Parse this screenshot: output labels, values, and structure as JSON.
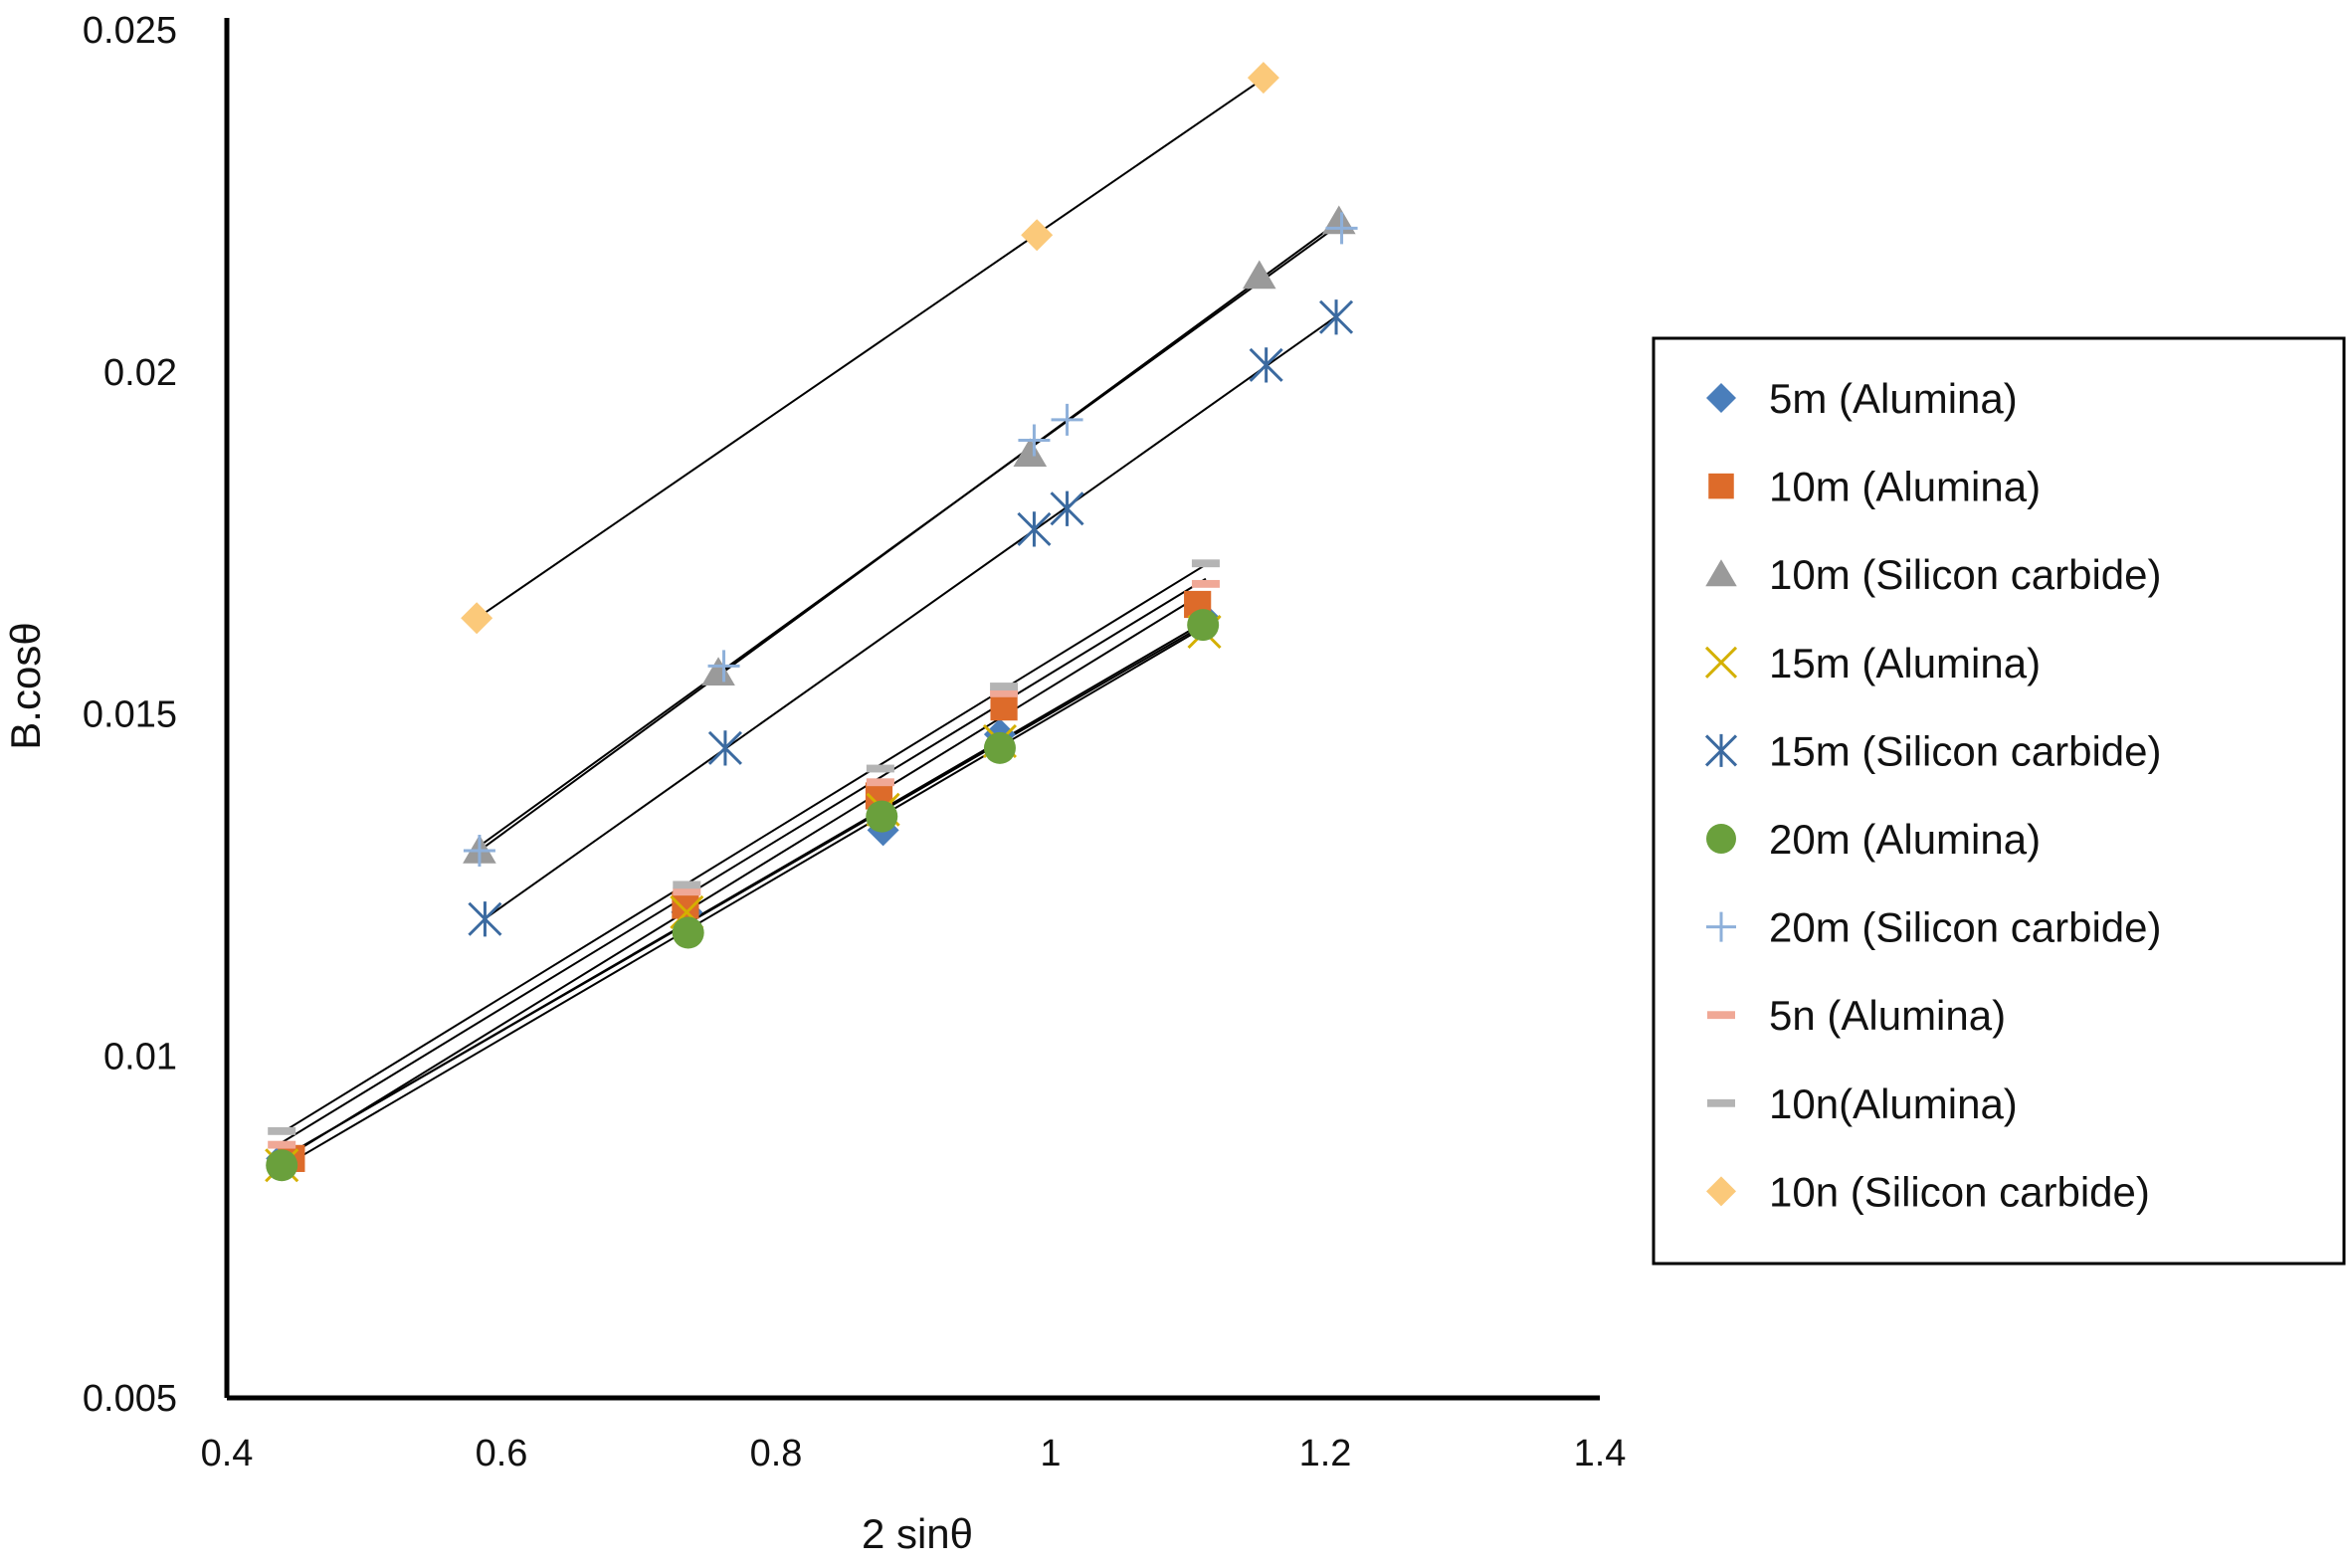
{
  "chart_data": {
    "type": "scatter",
    "title": "",
    "xlabel": "2 sinθ",
    "ylabel": "B.cosθ",
    "xlim": [
      0.4,
      1.4
    ],
    "ylim": [
      0.005,
      0.025
    ],
    "xticks": [
      0.4,
      0.6,
      0.8,
      1,
      1.2,
      1.4
    ],
    "xtick_labels": [
      "0.4",
      "0.6",
      "0.8",
      "1",
      "1.2",
      "1.4"
    ],
    "yticks": [
      0.005,
      0.01,
      0.015,
      0.02,
      0.025
    ],
    "ytick_labels": [
      "0.005",
      "0.01",
      "0.015",
      "0.02",
      "0.025"
    ],
    "grid": false,
    "legend_position": "right",
    "trendlines": "linear",
    "series": [
      {
        "name": "5m (Alumina)",
        "marker": "diamond",
        "color": "#4a7ebb",
        "x": [
          0.44,
          0.735,
          0.878,
          0.963,
          1.112
        ],
        "y": [
          0.0085,
          0.0121,
          0.0133,
          0.0147,
          0.0164
        ]
      },
      {
        "name": "10m (Alumina)",
        "marker": "square",
        "color": "#dd6b2a",
        "x": [
          0.447,
          0.734,
          0.875,
          0.966,
          1.107
        ],
        "y": [
          0.0085,
          0.0122,
          0.0138,
          0.0151,
          0.0166
        ]
      },
      {
        "name": "10m (Silicon carbide)",
        "marker": "triangle",
        "color": "#9a9a9a",
        "x": [
          0.584,
          0.758,
          0.985,
          1.152,
          1.21
        ],
        "y": [
          0.013,
          0.0156,
          0.0188,
          0.0214,
          0.0222
        ]
      },
      {
        "name": "15m (Alumina)",
        "marker": "x",
        "color": "#d4b000",
        "x": [
          0.44,
          0.735,
          0.878,
          0.963,
          1.112
        ],
        "y": [
          0.0084,
          0.0121,
          0.0136,
          0.0146,
          0.0162
        ]
      },
      {
        "name": "15m (Silicon carbide)",
        "marker": "star",
        "color": "#3b6aa0",
        "x": [
          0.588,
          0.763,
          0.988,
          1.012,
          1.157,
          1.208
        ],
        "y": [
          0.012,
          0.0145,
          0.0177,
          0.018,
          0.0201,
          0.0208
        ]
      },
      {
        "name": "20m (Alumina)",
        "marker": "circle",
        "color": "#6aa03c",
        "x": [
          0.44,
          0.736,
          0.877,
          0.963,
          1.111
        ],
        "y": [
          0.0084,
          0.0118,
          0.0135,
          0.0145,
          0.0163
        ]
      },
      {
        "name": "20m (Silicon carbide)",
        "marker": "plus",
        "color": "#8eb0da",
        "x": [
          0.584,
          0.762,
          0.988,
          1.012,
          1.212
        ],
        "y": [
          0.013,
          0.0157,
          0.019,
          0.0193,
          0.0221
        ]
      },
      {
        "name": "5n (Alumina)",
        "marker": "dash",
        "color": "#f0a896",
        "x": [
          0.44,
          0.735,
          0.876,
          0.966,
          1.113
        ],
        "y": [
          0.0087,
          0.0124,
          0.014,
          0.0153,
          0.0169
        ]
      },
      {
        "name": "10n(Alumina)",
        "marker": "dash",
        "color": "#b4b4b4",
        "x": [
          0.44,
          0.735,
          0.876,
          0.966,
          1.113
        ],
        "y": [
          0.0089,
          0.0125,
          0.0142,
          0.0154,
          0.0172
        ]
      },
      {
        "name": "10n (Silicon carbide)",
        "marker": "diamond",
        "color": "#fbc97a",
        "x": [
          0.582,
          0.99,
          1.155
        ],
        "y": [
          0.0164,
          0.022,
          0.0243
        ]
      }
    ]
  }
}
